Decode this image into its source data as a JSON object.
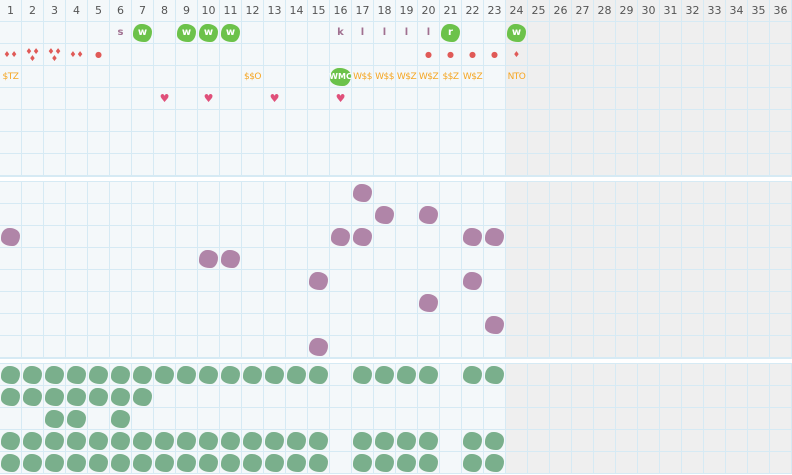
{
  "days": [
    "1",
    "2",
    "3",
    "4",
    "5",
    "6",
    "7",
    "8",
    "9",
    "10",
    "11",
    "12",
    "13",
    "14",
    "15",
    "16",
    "17",
    "18",
    "19",
    "20",
    "21",
    "22",
    "23",
    "24",
    "25",
    "26",
    "27",
    "28",
    "29",
    "30",
    "31",
    "32",
    "33",
    "34",
    "35",
    "36"
  ],
  "active_days": 24,
  "colors": {
    "purple": "#b085a8",
    "green": "#7aaf8c",
    "bright_green": "#6cc24a",
    "red": "#e05a57",
    "orange": "#f5a623",
    "heart": "#e0507a"
  },
  "section1": {
    "row_count": 7,
    "marks": [
      {
        "row": 0,
        "day": 6,
        "kind": "letter",
        "text": "s"
      },
      {
        "row": 0,
        "day": 7,
        "kind": "badge",
        "text": "w"
      },
      {
        "row": 0,
        "day": 9,
        "kind": "badge",
        "text": "w"
      },
      {
        "row": 0,
        "day": 10,
        "kind": "badge",
        "text": "w"
      },
      {
        "row": 0,
        "day": 11,
        "kind": "badge",
        "text": "w"
      },
      {
        "row": 0,
        "day": 16,
        "kind": "letter",
        "text": "k"
      },
      {
        "row": 0,
        "day": 17,
        "kind": "letter",
        "text": "l"
      },
      {
        "row": 0,
        "day": 18,
        "kind": "letter",
        "text": "l"
      },
      {
        "row": 0,
        "day": 19,
        "kind": "letter",
        "text": "l"
      },
      {
        "row": 0,
        "day": 20,
        "kind": "letter",
        "text": "l"
      },
      {
        "row": 0,
        "day": 21,
        "kind": "badge",
        "text": "r"
      },
      {
        "row": 0,
        "day": 24,
        "kind": "badge",
        "text": "w"
      },
      {
        "row": 1,
        "day": 1,
        "kind": "drops",
        "text": "♦♦"
      },
      {
        "row": 1,
        "day": 2,
        "kind": "drops",
        "text": "♦♦\n♦"
      },
      {
        "row": 1,
        "day": 3,
        "kind": "drops",
        "text": "♦♦\n♦"
      },
      {
        "row": 1,
        "day": 4,
        "kind": "drops",
        "text": "♦♦"
      },
      {
        "row": 1,
        "day": 5,
        "kind": "drops",
        "text": "●"
      },
      {
        "row": 1,
        "day": 20,
        "kind": "drops",
        "text": "●"
      },
      {
        "row": 1,
        "day": 21,
        "kind": "drops",
        "text": "●"
      },
      {
        "row": 1,
        "day": 22,
        "kind": "drops",
        "text": "●"
      },
      {
        "row": 1,
        "day": 23,
        "kind": "drops",
        "text": "●"
      },
      {
        "row": 1,
        "day": 24,
        "kind": "drops",
        "text": "♦"
      },
      {
        "row": 2,
        "day": 1,
        "kind": "text",
        "text": "$TZ"
      },
      {
        "row": 2,
        "day": 12,
        "kind": "text",
        "text": "$$O"
      },
      {
        "row": 2,
        "day": 16,
        "kind": "badge",
        "text": "WMC"
      },
      {
        "row": 2,
        "day": 17,
        "kind": "text",
        "text": "W$$"
      },
      {
        "row": 2,
        "day": 18,
        "kind": "text",
        "text": "W$$"
      },
      {
        "row": 2,
        "day": 19,
        "kind": "text",
        "text": "W$Z"
      },
      {
        "row": 2,
        "day": 20,
        "kind": "text",
        "text": "W$Z"
      },
      {
        "row": 2,
        "day": 21,
        "kind": "text",
        "text": "$$Z"
      },
      {
        "row": 2,
        "day": 22,
        "kind": "text",
        "text": "W$Z"
      },
      {
        "row": 2,
        "day": 24,
        "kind": "text",
        "text": "NTO"
      },
      {
        "row": 3,
        "day": 8,
        "kind": "heart",
        "text": "♥"
      },
      {
        "row": 3,
        "day": 10,
        "kind": "heart",
        "text": "♥"
      },
      {
        "row": 3,
        "day": 13,
        "kind": "heart",
        "text": "♥"
      },
      {
        "row": 3,
        "day": 16,
        "kind": "heart",
        "text": "♥"
      }
    ]
  },
  "section2": {
    "row_count": 8,
    "color": "purple",
    "rows": [
      [
        17
      ],
      [
        18,
        20
      ],
      [
        1,
        16,
        17,
        22,
        23
      ],
      [
        10,
        11
      ],
      [
        15,
        22
      ],
      [
        20
      ],
      [
        23
      ],
      [
        15
      ]
    ]
  },
  "section3": {
    "row_count": 5,
    "color": "green",
    "rows": [
      [
        1,
        2,
        3,
        4,
        5,
        6,
        7,
        8,
        9,
        10,
        11,
        12,
        13,
        14,
        15,
        17,
        18,
        19,
        20,
        22,
        23
      ],
      [
        1,
        2,
        3,
        4,
        5,
        6,
        7
      ],
      [
        3,
        4,
        6
      ],
      [
        1,
        2,
        3,
        4,
        5,
        6,
        7,
        8,
        9,
        10,
        11,
        12,
        13,
        14,
        15,
        17,
        18,
        19,
        20,
        22,
        23
      ],
      [
        1,
        2,
        3,
        4,
        5,
        6,
        7,
        8,
        9,
        10,
        11,
        12,
        13,
        14,
        15,
        17,
        18,
        19,
        20,
        22,
        23
      ]
    ]
  }
}
